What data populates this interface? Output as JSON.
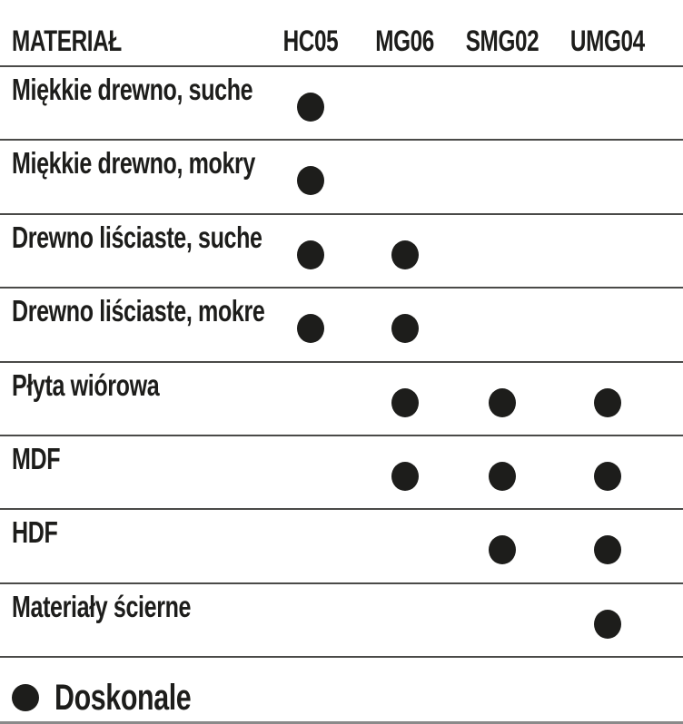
{
  "header": {
    "material": "MATERIAŁ",
    "columns": [
      "HC05",
      "MG06",
      "SMG02",
      "UMG04"
    ]
  },
  "rows": [
    {
      "label": "Miękkie drewno, suche",
      "marks": [
        1,
        0,
        0,
        0
      ]
    },
    {
      "label": "Miękkie drewno, mokry",
      "marks": [
        1,
        0,
        0,
        0
      ]
    },
    {
      "label": "Drewno liściaste, suche",
      "marks": [
        1,
        1,
        0,
        0
      ]
    },
    {
      "label": "Drewno liściaste, mokre",
      "marks": [
        1,
        1,
        0,
        0
      ]
    },
    {
      "label": "Płyta wiórowa",
      "marks": [
        0,
        1,
        1,
        1
      ]
    },
    {
      "label": "MDF",
      "marks": [
        0,
        1,
        1,
        1
      ]
    },
    {
      "label": "HDF",
      "marks": [
        0,
        0,
        1,
        1
      ]
    },
    {
      "label": "Materiały ścierne",
      "marks": [
        0,
        0,
        0,
        1
      ]
    }
  ],
  "legend": {
    "symbol": "filled-dot",
    "label": "Doskonale"
  },
  "colors": {
    "text": "#1d1d1b",
    "dot": "#1d1d1b",
    "separator_line": "#4a4a48",
    "bottom_line": "#8a8a8a",
    "background": "#ffffff"
  },
  "chart_data": {
    "type": "table",
    "title": "",
    "row_header": "MATERIAŁ",
    "columns": [
      "HC05",
      "MG06",
      "SMG02",
      "UMG04"
    ],
    "rows": [
      "Miękkie drewno, suche",
      "Miękkie drewno, mokry",
      "Drewno liściaste, suche",
      "Drewno liściaste, mokre",
      "Płyta wiórowa",
      "MDF",
      "HDF",
      "Materiały ścierne"
    ],
    "matrix": [
      [
        1,
        0,
        0,
        0
      ],
      [
        1,
        0,
        0,
        0
      ],
      [
        1,
        1,
        0,
        0
      ],
      [
        1,
        1,
        0,
        0
      ],
      [
        0,
        1,
        1,
        1
      ],
      [
        0,
        1,
        1,
        1
      ],
      [
        0,
        0,
        1,
        1
      ],
      [
        0,
        0,
        0,
        1
      ]
    ],
    "legend": [
      {
        "symbol": "filled-circle",
        "label": "Doskonale",
        "matrix_value": 1
      }
    ],
    "layout": {
      "grid": "horizontal-separators",
      "marker": "filled-circle"
    }
  }
}
